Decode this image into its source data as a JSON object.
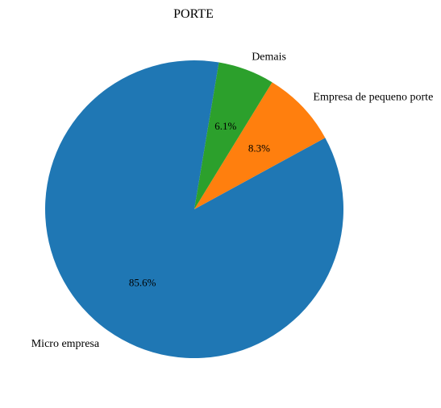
{
  "chart_data": {
    "type": "pie",
    "title": "PORTE",
    "slices": [
      {
        "label": "Micro empresa",
        "value": 85.6,
        "pct_label": "85.6%",
        "color": "#1f77b4"
      },
      {
        "label": "Empresa de pequeno porte",
        "value": 8.3,
        "pct_label": "8.3%",
        "color": "#ff7f0e"
      },
      {
        "label": "Demais",
        "value": 6.1,
        "pct_label": "6.1%",
        "color": "#2ca02c"
      }
    ],
    "legend": "none"
  }
}
